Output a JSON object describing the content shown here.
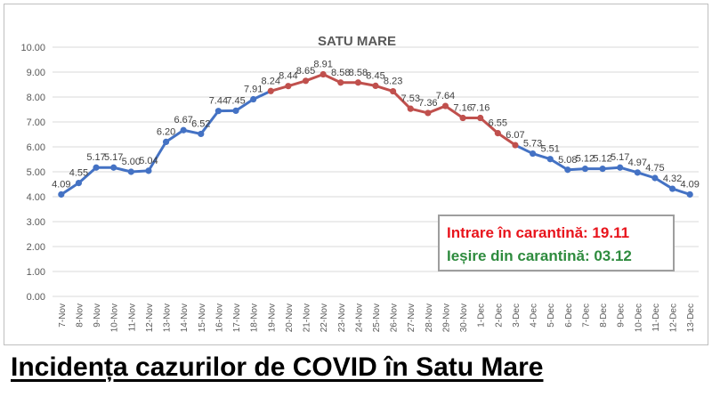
{
  "caption": "Incidența cazurilor de COVID în Satu Mare",
  "legend": {
    "in_label": "Intrare în carantină: 19.11",
    "out_label": "Ieșire din carantină: 03.12"
  },
  "colors": {
    "normal_series": "#4472c4",
    "quarantine_series": "#c0504d",
    "legend_in": "#e8141c",
    "legend_out": "#2e8b3e",
    "grid": "#d9d9d9"
  },
  "chart_data": {
    "type": "line",
    "title": "SATU MARE",
    "xlabel": "",
    "ylabel": "",
    "ylim": [
      0,
      10
    ],
    "yticks": [
      "0.00",
      "1.00",
      "2.00",
      "3.00",
      "4.00",
      "5.00",
      "6.00",
      "7.00",
      "8.00",
      "9.00",
      "10.00"
    ],
    "grid": true,
    "categories": [
      "7-Nov",
      "8-Nov",
      "9-Nov",
      "10-Nov",
      "11-Nov",
      "12-Nov",
      "13-Nov",
      "14-Nov",
      "15-Nov",
      "16-Nov",
      "17-Nov",
      "18-Nov",
      "19-Nov",
      "20-Nov",
      "21-Nov",
      "22-Nov",
      "23-Nov",
      "24-Nov",
      "25-Nov",
      "26-Nov",
      "27-Nov",
      "28-Nov",
      "29-Nov",
      "30-Nov",
      "1-Dec",
      "2-Dec",
      "3-Dec",
      "4-Dec",
      "5-Dec",
      "6-Dec",
      "7-Dec",
      "8-Dec",
      "9-Dec",
      "10-Dec",
      "11-Dec",
      "12-Dec",
      "13-Dec"
    ],
    "values": [
      4.09,
      4.55,
      5.17,
      5.17,
      5.0,
      5.04,
      6.2,
      6.67,
      6.52,
      7.44,
      7.45,
      7.91,
      8.24,
      8.44,
      8.65,
      8.91,
      8.58,
      8.58,
      8.45,
      8.23,
      7.53,
      7.36,
      7.64,
      7.16,
      7.16,
      6.55,
      6.07,
      5.73,
      5.51,
      5.08,
      5.12,
      5.12,
      5.17,
      4.97,
      4.75,
      4.32,
      4.09
    ],
    "data_labels": [
      "4.09",
      "4.55",
      "5.17",
      "5.17",
      "5.00",
      "5.04",
      "6.20",
      "6.67",
      "6.52",
      "7.44",
      "7.45",
      "7.91",
      "8.24",
      "8.44",
      "8.65",
      "8.91",
      "8.58",
      "8.58",
      "8.45",
      "8.23",
      "7.53",
      "7.36",
      "7.64",
      "7.16",
      "7.16",
      "6.55",
      "6.07",
      "5.73",
      "5.51",
      "5.08",
      "5.12",
      "5.12",
      "5.17",
      "4.97",
      "4.75",
      "4.32",
      "4.09"
    ],
    "quarantine_range": [
      "19-Nov",
      "3-Dec"
    ]
  }
}
